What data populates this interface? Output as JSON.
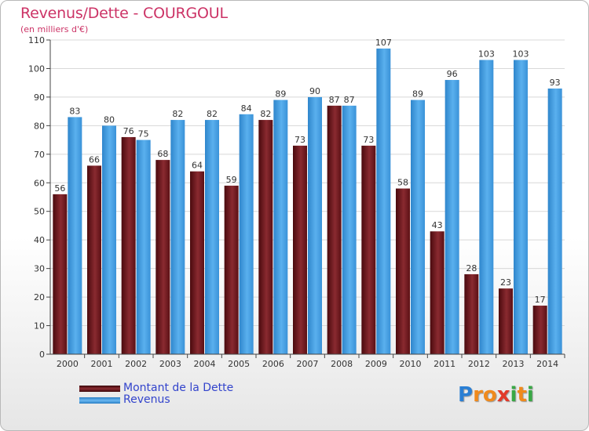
{
  "title": "Revenus/Dette - COURGOUL",
  "subtitle": "(en milliers d'€)",
  "logo": {
    "letters": [
      "P",
      "r",
      "o",
      "x",
      "i",
      "t",
      "i"
    ],
    "colors": [
      "#2a7fd4",
      "#f08a1c",
      "#f08a1c",
      "#e23a2a",
      "#39a845",
      "#f08a1c",
      "#39a845"
    ]
  },
  "chart_data": {
    "type": "bar",
    "categories": [
      "2000",
      "2001",
      "2002",
      "2003",
      "2004",
      "2005",
      "2006",
      "2007",
      "2008",
      "2009",
      "2010",
      "2011",
      "2012",
      "2013",
      "2014"
    ],
    "series": [
      {
        "name": "Montant de la Dette",
        "color": "#7a1f24",
        "values": [
          56,
          66,
          76,
          68,
          64,
          59,
          82,
          73,
          87,
          73,
          58,
          43,
          28,
          23,
          17
        ]
      },
      {
        "name": "Revenus",
        "color": "#3a96dc",
        "values": [
          83,
          80,
          75,
          82,
          82,
          84,
          89,
          90,
          87,
          107,
          89,
          96,
          103,
          103,
          93
        ]
      }
    ],
    "ylim": [
      0,
      110
    ],
    "yticks": [
      0,
      10,
      20,
      30,
      40,
      50,
      60,
      70,
      80,
      90,
      100,
      110
    ],
    "grid": true,
    "legend": "bottom-left",
    "xlabel": "",
    "ylabel": ""
  }
}
